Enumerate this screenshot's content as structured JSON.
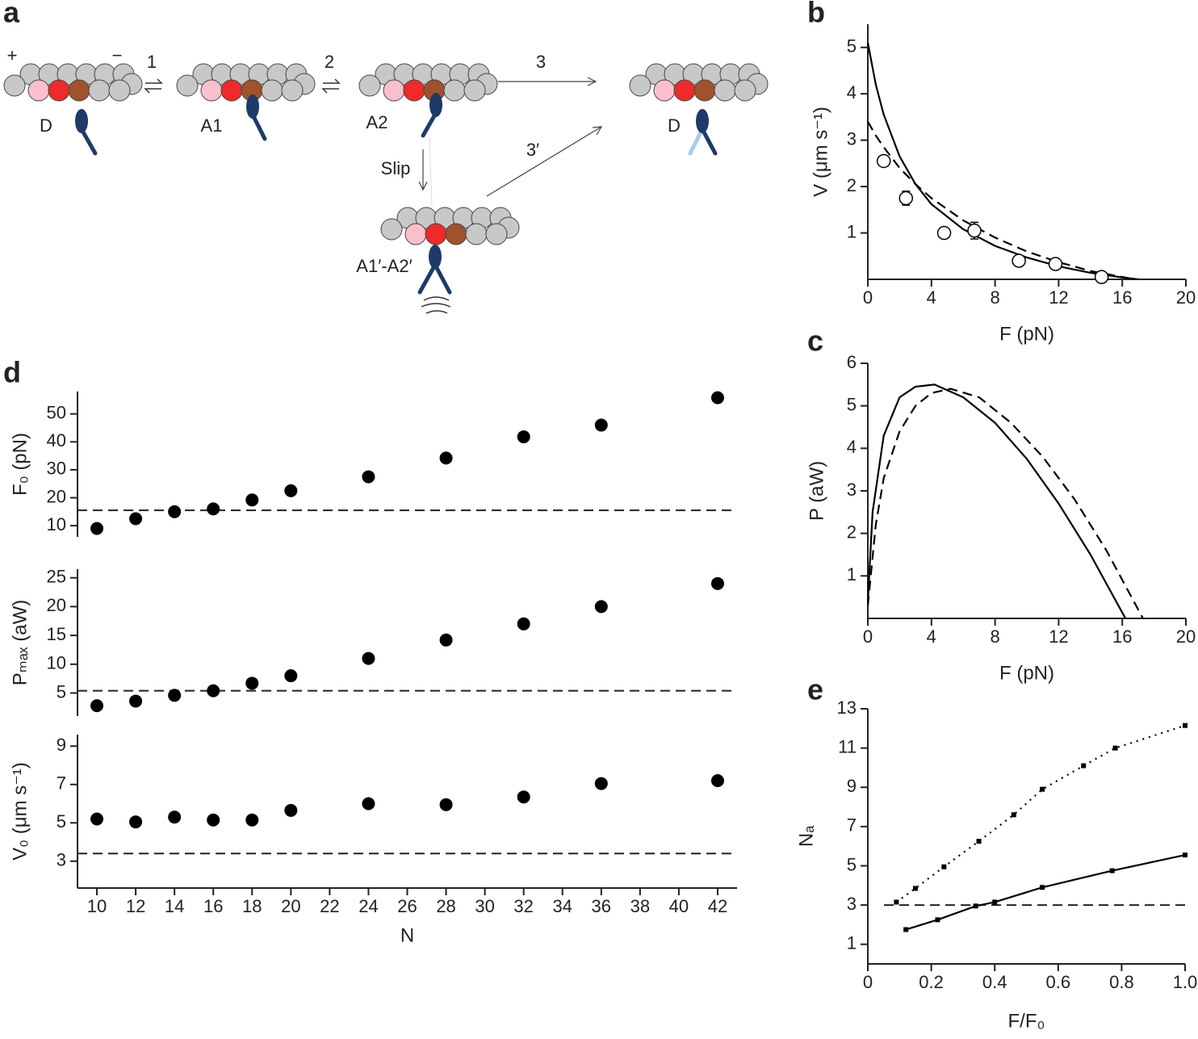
{
  "diagram": {
    "panel": "a",
    "texts": [
      "+",
      "−",
      "1",
      "2",
      "3",
      "3′",
      "Slip",
      "D",
      "A1",
      "A2",
      "D",
      "A1′-A2′"
    ]
  },
  "chart_data": [
    {
      "type": "line",
      "panel": "b",
      "xlabel": "F (pN)",
      "ylabel": "V (μm s⁻¹)",
      "xlim": [
        0,
        20
      ],
      "xticks": [
        0,
        4,
        8,
        12,
        16,
        20
      ],
      "ylim": [
        0,
        5.5
      ],
      "yticks": [
        1,
        2,
        3,
        4,
        5
      ],
      "series": [
        {
          "style": "solid",
          "color": "#000000",
          "x": [
            0,
            0.5,
            1,
            2,
            3,
            4,
            6,
            8,
            10,
            12,
            14,
            16,
            17
          ],
          "values": [
            5.1,
            4.2,
            3.55,
            2.65,
            2.05,
            1.62,
            1.08,
            0.72,
            0.47,
            0.28,
            0.14,
            0.04,
            0
          ]
        },
        {
          "style": "dashed",
          "color": "#000000",
          "x": [
            0,
            0.5,
            1,
            2,
            3,
            4,
            6,
            8,
            10,
            12,
            14,
            16,
            16.8
          ],
          "values": [
            3.4,
            3.1,
            2.85,
            2.4,
            2.05,
            1.75,
            1.27,
            0.9,
            0.6,
            0.37,
            0.18,
            0.05,
            0
          ]
        },
        {
          "style": "open-circle",
          "color": "#000000",
          "x": [
            1,
            2.4,
            4.8,
            6.7,
            9.5,
            11.8,
            14.7
          ],
          "values": [
            2.55,
            1.75,
            1.0,
            1.05,
            0.4,
            0.33,
            0.05
          ],
          "errors": [
            null,
            0.15,
            null,
            0.18,
            null,
            null,
            null
          ]
        }
      ]
    },
    {
      "type": "line",
      "panel": "c",
      "xlabel": "F (pN)",
      "ylabel": "P (aW)",
      "xlim": [
        0,
        20
      ],
      "xticks": [
        0,
        4,
        8,
        12,
        16,
        20
      ],
      "ylim": [
        0,
        6
      ],
      "yticks": [
        1,
        2,
        3,
        4,
        5,
        6
      ],
      "series": [
        {
          "style": "solid",
          "color": "#000000",
          "x": [
            0,
            0.3,
            1,
            2,
            3,
            4.2,
            6,
            8,
            10,
            12,
            14,
            16.2
          ],
          "values": [
            0.4,
            2.5,
            4.3,
            5.2,
            5.45,
            5.5,
            5.2,
            4.6,
            3.75,
            2.7,
            1.5,
            0
          ]
        },
        {
          "style": "dashed",
          "color": "#000000",
          "x": [
            0,
            0.5,
            1,
            2,
            3,
            4,
            5.2,
            7,
            9,
            11,
            13,
            15,
            17.3
          ],
          "values": [
            0.3,
            2.2,
            3.3,
            4.4,
            5.0,
            5.3,
            5.4,
            5.2,
            4.6,
            3.8,
            2.8,
            1.6,
            0
          ]
        }
      ]
    },
    {
      "type": "scatter",
      "panel": "d",
      "ylabel": "F₀ (pN)",
      "xlim": [
        9,
        43
      ],
      "ylim": [
        6,
        58
      ],
      "yticks": [
        10,
        20,
        30,
        40,
        50
      ],
      "hline": 15.5,
      "x": [
        10,
        12,
        14,
        16,
        18,
        20,
        24,
        28,
        32,
        36,
        42
      ],
      "values": [
        9,
        12.5,
        15,
        16,
        19.2,
        22.5,
        27.5,
        34.2,
        41.8,
        46,
        55.8
      ],
      "color": "#000000"
    },
    {
      "type": "scatter",
      "ylabel": "Pₘₐₓ (aW)",
      "xlim": [
        9,
        43
      ],
      "ylim": [
        1,
        26.5
      ],
      "yticks": [
        5,
        10,
        15,
        20,
        25
      ],
      "hline": 5.4,
      "x": [
        10,
        12,
        14,
        16,
        18,
        20,
        24,
        28,
        32,
        36,
        42
      ],
      "values": [
        2.8,
        3.6,
        4.6,
        5.4,
        6.7,
        8.0,
        11.0,
        14.2,
        17,
        20,
        24
      ],
      "color": "#000000"
    },
    {
      "type": "scatter",
      "ylabel": "V₀ (μm s⁻¹)",
      "xlabel": "N",
      "xlim": [
        9,
        43
      ],
      "xticks": [
        10,
        12,
        14,
        16,
        18,
        20,
        22,
        24,
        26,
        28,
        30,
        32,
        34,
        36,
        38,
        40,
        42
      ],
      "ylim": [
        1.6,
        9.6
      ],
      "yticks": [
        3,
        5,
        7,
        9
      ],
      "hline": 3.4,
      "x": [
        10,
        12,
        14,
        16,
        18,
        20,
        24,
        28,
        32,
        36,
        42
      ],
      "values": [
        5.2,
        5.05,
        5.3,
        5.15,
        5.15,
        5.65,
        6.0,
        5.95,
        6.35,
        7.05,
        7.2
      ],
      "color": "#000000"
    },
    {
      "type": "line",
      "panel": "e",
      "xlabel": "F/F₀",
      "ylabel": "Nₐ",
      "xlim": [
        0,
        1
      ],
      "xticks": [
        0,
        0.2,
        0.4,
        0.6,
        0.8,
        {
          "value": 1,
          "label": "1.0"
        }
      ],
      "ylim": [
        0,
        13
      ],
      "yticks": [
        1,
        3,
        5,
        7,
        9,
        11,
        13
      ],
      "hline": 3,
      "series": [
        {
          "style": "dotted",
          "color": "#000000",
          "x": [
            0.09,
            0.15,
            0.24,
            0.35,
            0.46,
            0.55,
            0.68,
            0.78,
            1.0
          ],
          "values": [
            3.15,
            3.85,
            4.95,
            6.25,
            7.6,
            8.9,
            10.1,
            11.0,
            12.15
          ]
        },
        {
          "style": "solid",
          "color": "#000000",
          "x": [
            0.12,
            0.22,
            0.34,
            0.4,
            0.55,
            0.77,
            1.0
          ],
          "values": [
            1.75,
            2.25,
            2.95,
            3.15,
            3.9,
            4.75,
            5.55
          ]
        }
      ]
    }
  ]
}
